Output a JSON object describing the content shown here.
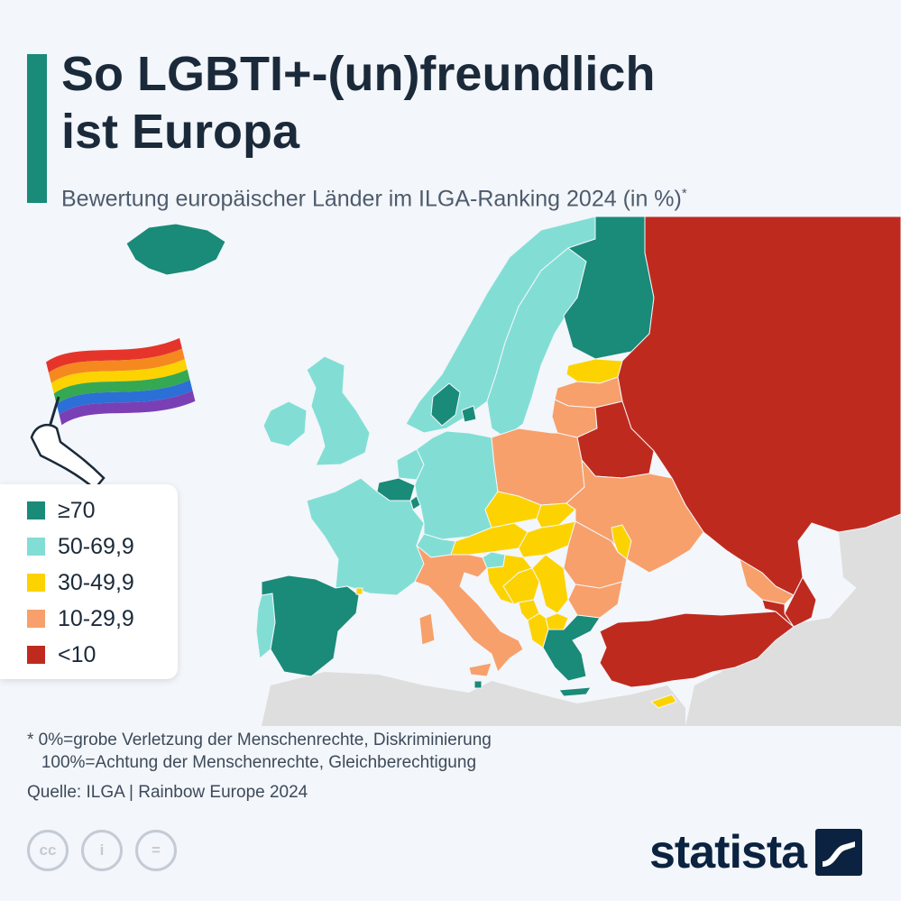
{
  "header": {
    "title": "So LGBTI+-(un)freundlich\nist Europa",
    "subtitle": "Bewertung europäischer Länder im ILGA-Ranking 2024 (in %)",
    "subtitle_marker": "*"
  },
  "legend": {
    "items": [
      {
        "label": "≥70",
        "color": "#1a8a79"
      },
      {
        "label": "50-69,9",
        "color": "#82ded5"
      },
      {
        "label": "30-49,9",
        "color": "#fcd300"
      },
      {
        "label": "10-29,9",
        "color": "#f7a06b"
      },
      {
        "label": "<10",
        "color": "#bf2a1f"
      }
    ]
  },
  "map": {
    "no_data_color": "#dedede",
    "country_classes": {
      "iceland": "≥70",
      "norway": "50-69,9",
      "sweden": "50-69,9",
      "finland": "≥70",
      "estonia": "30-49,9",
      "latvia": "10-29,9",
      "lithuania": "10-29,9",
      "russia": "<10",
      "belarus": "<10",
      "ireland": "50-69,9",
      "united-kingdom": "50-69,9",
      "denmark": "≥70",
      "netherlands": "50-69,9",
      "belgium": "≥70",
      "luxembourg": "≥70",
      "france": "50-69,9",
      "germany": "50-69,9",
      "switzerland": "50-69,9",
      "austria": "30-49,9",
      "poland": "10-29,9",
      "czechia": "30-49,9",
      "slovakia": "30-49,9",
      "hungary": "30-49,9",
      "ukraine": "10-29,9",
      "moldova": "30-49,9",
      "romania": "10-29,9",
      "bulgaria": "10-29,9",
      "italy": "10-29,9",
      "slovenia": "50-69,9",
      "croatia": "30-49,9",
      "bosnia": "30-49,9",
      "serbia": "30-49,9",
      "montenegro": "30-49,9",
      "albania": "30-49,9",
      "north-macedonia": "30-49,9",
      "greece": "≥70",
      "portugal": "50-69,9",
      "spain": "≥70",
      "andorra": "30-49,9",
      "malta": "≥70",
      "cyprus": "30-49,9",
      "turkey": "<10",
      "azerbaijan": "<10",
      "armenia": "<10",
      "georgia": "10-29,9"
    }
  },
  "footnote": "* 0%=grobe Verletzung der Menschenrechte, Diskriminierung\n   100%=Achtung der Menschenrechte, Gleichberechtigung",
  "source": "Quelle: ILGA | Rainbow Europe 2024",
  "license_icons": [
    {
      "name": "cc-icon",
      "glyph": "cc"
    },
    {
      "name": "by-icon",
      "glyph": "i"
    },
    {
      "name": "nd-icon",
      "glyph": "="
    }
  ],
  "brand": {
    "name": "statista"
  }
}
